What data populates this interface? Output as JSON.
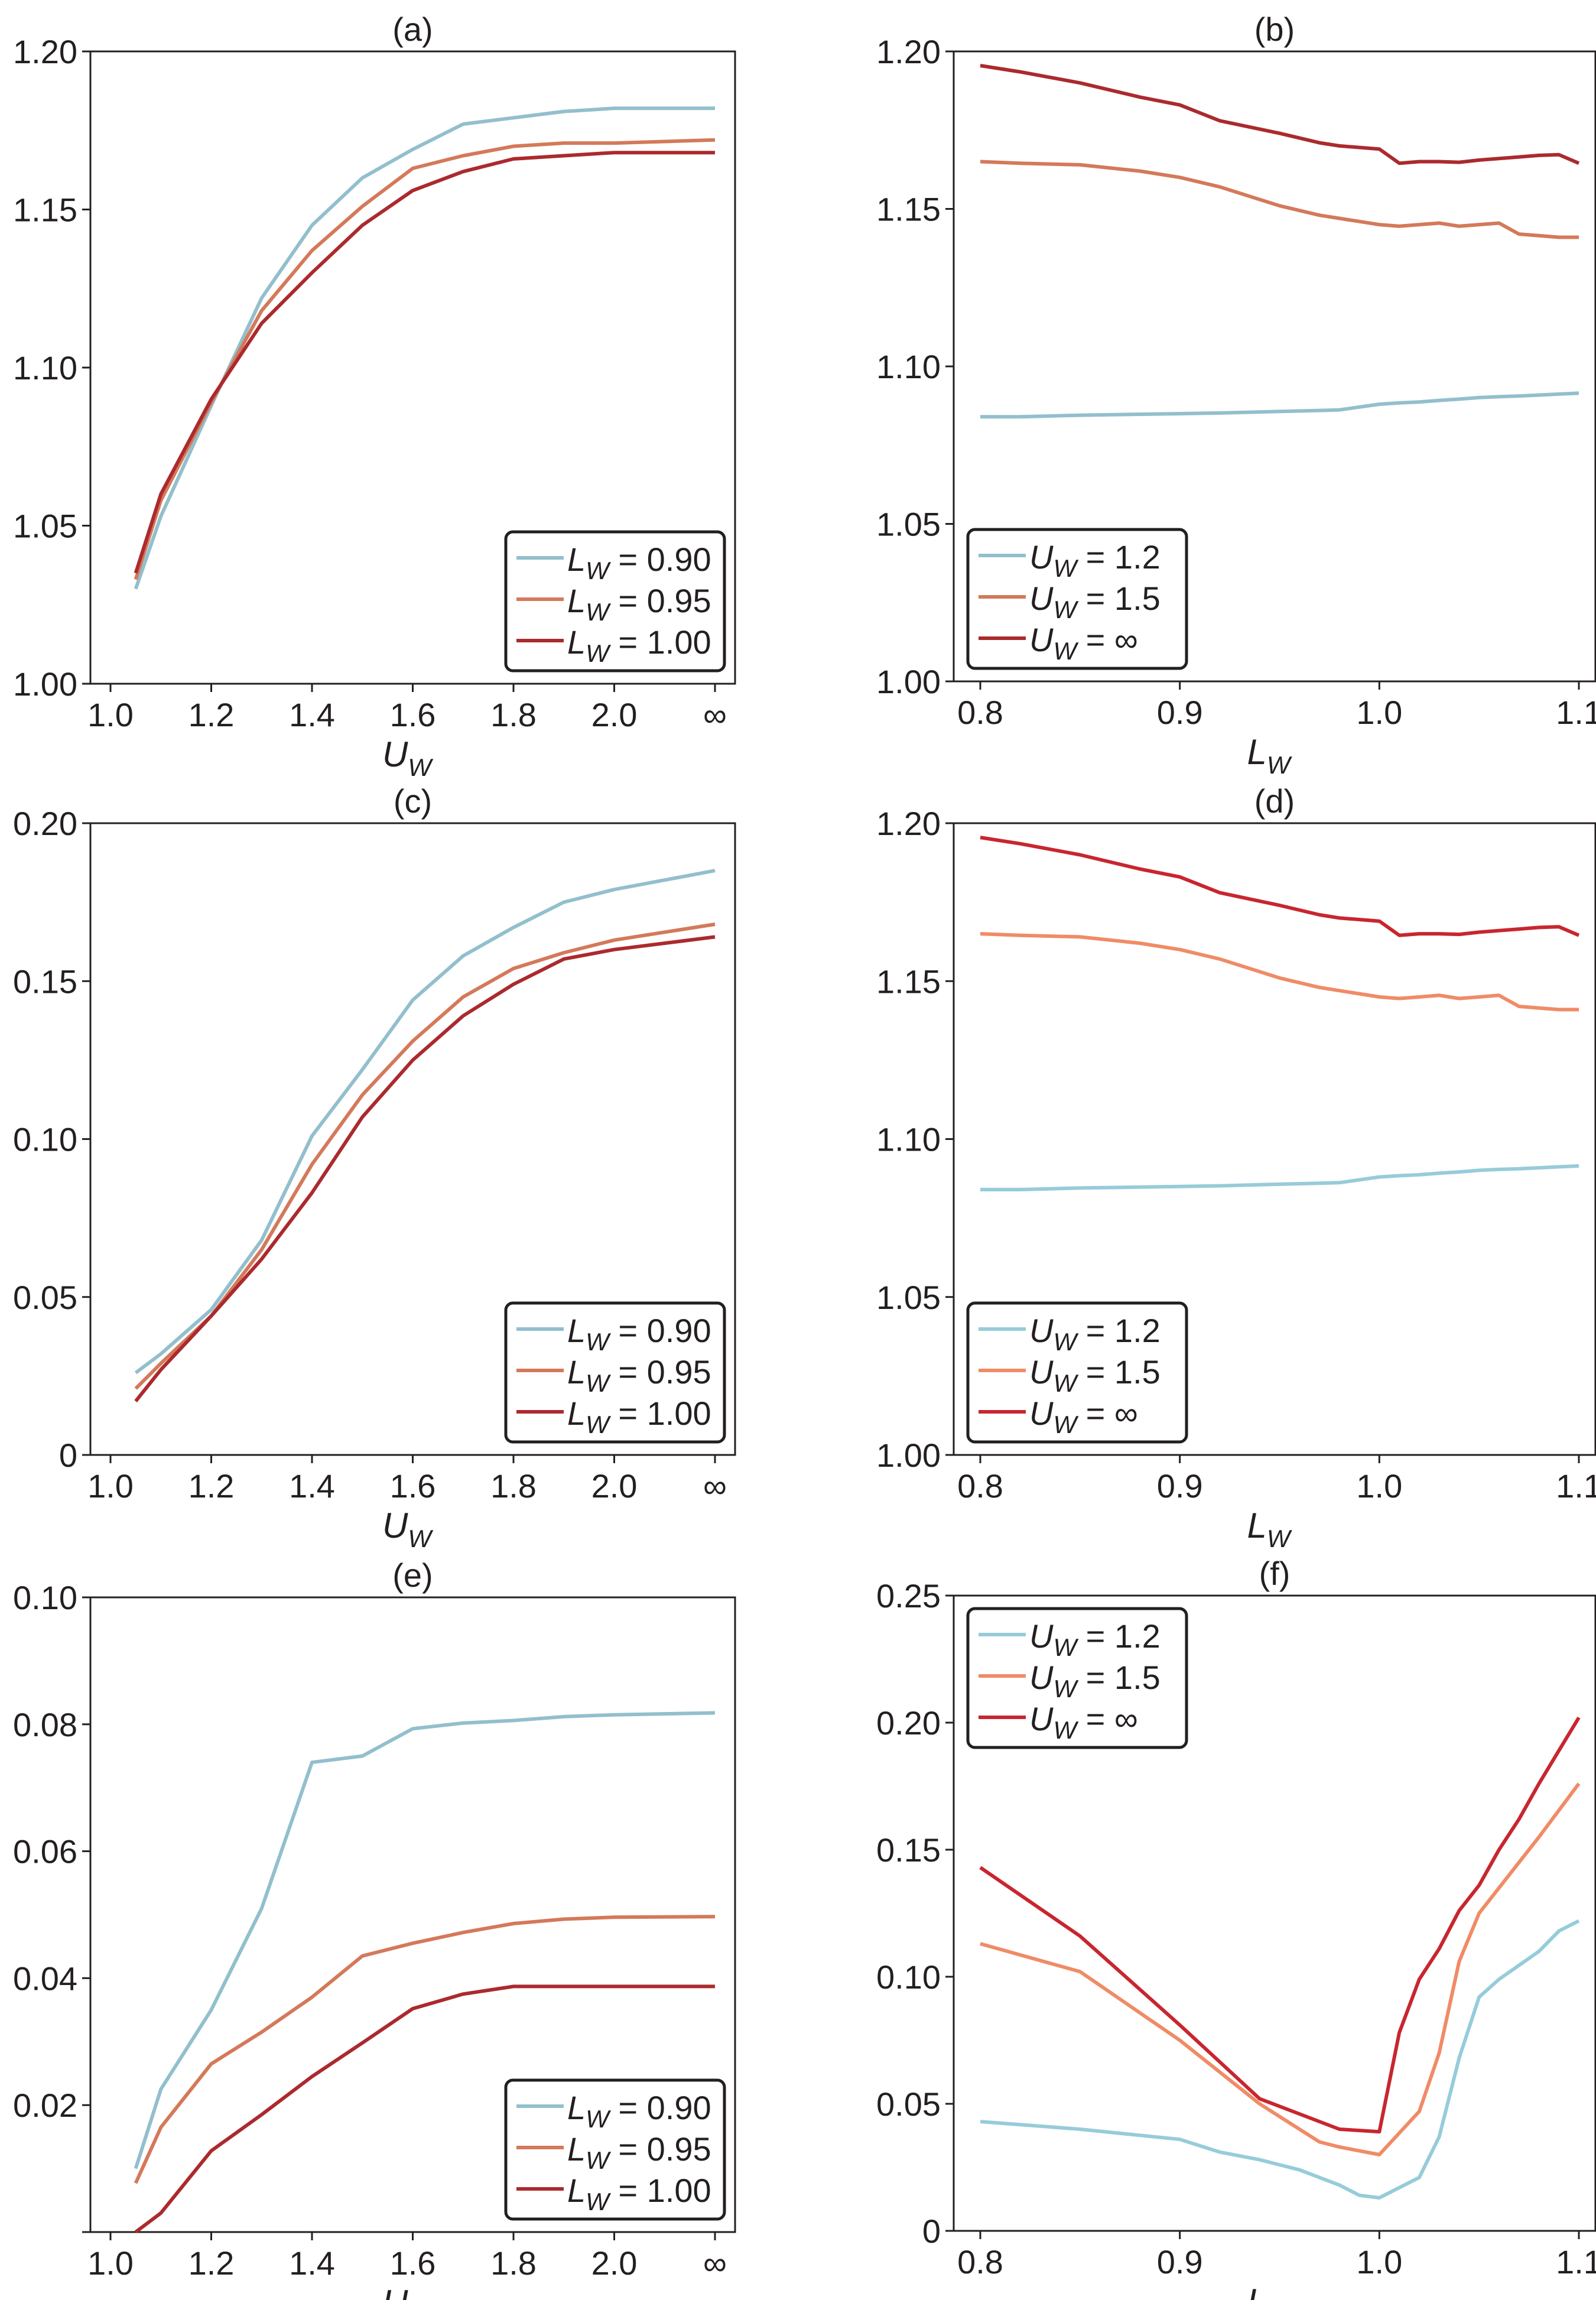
{
  "figure": {
    "panels": [
      "a",
      "b",
      "c",
      "d",
      "e",
      "f"
    ]
  },
  "chart_data": [
    {
      "id": "a",
      "type": "line",
      "title": "(a)",
      "xlabel": "U",
      "xlabel_sub": "W",
      "ylabel": "",
      "x_kind": "categorical-numeric",
      "x_ticks": [
        "1.0",
        "1.2",
        "1.4",
        "1.6",
        "1.8",
        "2.0",
        "∞"
      ],
      "ylim": [
        1.0,
        1.2
      ],
      "y_ticks": [
        "1.00",
        "1.05",
        "1.10",
        "1.15",
        "1.20"
      ],
      "legend_position": "lower-right",
      "x": [
        1.05,
        1.1,
        1.2,
        1.3,
        1.4,
        1.5,
        1.6,
        1.7,
        1.8,
        1.9,
        2.0,
        "∞"
      ],
      "series": [
        {
          "name": "L_W = 0.90",
          "var": "L",
          "sub": "W",
          "value": "0.90",
          "color": "#92bfcd",
          "values": [
            1.03,
            1.053,
            1.088,
            1.122,
            1.145,
            1.16,
            1.169,
            1.177,
            1.179,
            1.181,
            1.182,
            1.182
          ]
        },
        {
          "name": "L_W = 0.95",
          "var": "L",
          "sub": "W",
          "value": "0.95",
          "color": "#d4795a",
          "values": [
            1.033,
            1.058,
            1.089,
            1.118,
            1.137,
            1.151,
            1.163,
            1.167,
            1.17,
            1.171,
            1.171,
            1.172
          ]
        },
        {
          "name": "L_W = 1.00",
          "var": "L",
          "sub": "W",
          "value": "1.00",
          "color": "#ab2a2e",
          "values": [
            1.035,
            1.06,
            1.09,
            1.114,
            1.13,
            1.145,
            1.156,
            1.162,
            1.166,
            1.167,
            1.168,
            1.168
          ]
        }
      ]
    },
    {
      "id": "b",
      "type": "line",
      "title": "(b)",
      "xlabel": "L",
      "xlabel_sub": "W",
      "ylabel": "",
      "x_kind": "linear",
      "xlim": [
        0.79,
        1.11
      ],
      "x_ticks": [
        "0.8",
        "0.9",
        "1.0",
        "1.1"
      ],
      "ylim": [
        1.0,
        1.2
      ],
      "y_ticks": [
        "1.00",
        "1.05",
        "1.10",
        "1.15",
        "1.20"
      ],
      "legend_position": "lower-left",
      "x": [
        0.8,
        0.82,
        0.85,
        0.88,
        0.9,
        0.92,
        0.95,
        0.97,
        0.98,
        1.0,
        1.01,
        1.02,
        1.03,
        1.04,
        1.05,
        1.06,
        1.07,
        1.08,
        1.09,
        1.1
      ],
      "series": [
        {
          "name": "U_W = 1.2",
          "var": "U",
          "sub": "W",
          "value": "1.2",
          "color": "#92bfcd",
          "values": [
            1.084,
            1.084,
            1.0845,
            1.0848,
            1.085,
            1.0852,
            1.0857,
            1.086,
            1.0862,
            1.088,
            1.0884,
            1.0887,
            1.0892,
            1.0896,
            1.0901,
            1.0904,
            1.0906,
            1.0909,
            1.0912,
            1.0915
          ]
        },
        {
          "name": "U_W = 1.5",
          "var": "U",
          "sub": "W",
          "value": "1.5",
          "color": "#d4795a",
          "values": [
            1.165,
            1.1645,
            1.164,
            1.162,
            1.16,
            1.157,
            1.151,
            1.148,
            1.147,
            1.145,
            1.1445,
            1.145,
            1.1455,
            1.1445,
            1.145,
            1.1455,
            1.142,
            1.1415,
            1.141,
            1.141
          ]
        },
        {
          "name": "U_W = ∞",
          "var": "U",
          "sub": "W",
          "value": "∞",
          "color": "#ab2a2e",
          "values": [
            1.1955,
            1.1935,
            1.19,
            1.1855,
            1.183,
            1.178,
            1.174,
            1.171,
            1.17,
            1.169,
            1.1645,
            1.165,
            1.165,
            1.1648,
            1.1655,
            1.166,
            1.1665,
            1.167,
            1.1672,
            1.1645
          ]
        }
      ]
    },
    {
      "id": "c",
      "type": "line",
      "title": "(c)",
      "xlabel": "U",
      "xlabel_sub": "W",
      "ylabel": "",
      "x_kind": "categorical-numeric",
      "x_ticks": [
        "1.0",
        "1.2",
        "1.4",
        "1.6",
        "1.8",
        "2.0",
        "∞"
      ],
      "ylim": [
        0,
        0.2
      ],
      "y_ticks": [
        "0",
        "0.05",
        "0.10",
        "0.15",
        "0.20"
      ],
      "legend_position": "lower-right",
      "x": [
        1.05,
        1.1,
        1.2,
        1.3,
        1.4,
        1.5,
        1.6,
        1.7,
        1.8,
        1.9,
        2.0,
        "∞"
      ],
      "series": [
        {
          "name": "L_W = 0.90",
          "var": "L",
          "sub": "W",
          "value": "0.90",
          "color": "#92bfcd",
          "values": [
            0.026,
            0.032,
            0.046,
            0.068,
            0.101,
            0.122,
            0.144,
            0.158,
            0.167,
            0.175,
            0.179,
            0.185
          ]
        },
        {
          "name": "L_W = 0.95",
          "var": "L",
          "sub": "W",
          "value": "0.95",
          "color": "#d4795a",
          "values": [
            0.021,
            0.029,
            0.044,
            0.065,
            0.092,
            0.114,
            0.131,
            0.145,
            0.154,
            0.159,
            0.163,
            0.168
          ]
        },
        {
          "name": "L_W = 1.00",
          "var": "L",
          "sub": "W",
          "value": "1.00",
          "color": "#ab2a2e",
          "values": [
            0.017,
            0.027,
            0.044,
            0.062,
            0.083,
            0.107,
            0.125,
            0.139,
            0.149,
            0.157,
            0.16,
            0.164
          ]
        }
      ]
    },
    {
      "id": "d",
      "type": "line",
      "title": "(d)",
      "xlabel": "L",
      "xlabel_sub": "W",
      "ylabel": "",
      "x_kind": "linear",
      "xlim": [
        0.79,
        1.11
      ],
      "x_ticks": [
        "0.8",
        "0.9",
        "1.0",
        "1.1"
      ],
      "ylim": [
        1.0,
        1.2
      ],
      "y_ticks": [
        "1.00",
        "1.05",
        "1.10",
        "1.15",
        "1.20"
      ],
      "legend_position": "lower-left",
      "x": [
        0.8,
        0.82,
        0.85,
        0.88,
        0.9,
        0.92,
        0.95,
        0.97,
        0.98,
        1.0,
        1.01,
        1.02,
        1.03,
        1.04,
        1.05,
        1.06,
        1.07,
        1.08,
        1.09,
        1.1
      ],
      "series": [
        {
          "name": "U_W = 1.2",
          "var": "U",
          "sub": "W",
          "value": "1.2",
          "color": "#96ccd9",
          "values": [
            1.084,
            1.084,
            1.0845,
            1.0848,
            1.085,
            1.0852,
            1.0857,
            1.086,
            1.0862,
            1.088,
            1.0884,
            1.0887,
            1.0892,
            1.0896,
            1.0901,
            1.0904,
            1.0906,
            1.0909,
            1.0912,
            1.0915
          ]
        },
        {
          "name": "U_W = 1.5",
          "var": "U",
          "sub": "W",
          "value": "1.5",
          "color": "#f08b66",
          "values": [
            1.165,
            1.1645,
            1.164,
            1.162,
            1.16,
            1.157,
            1.151,
            1.148,
            1.147,
            1.145,
            1.1445,
            1.145,
            1.1455,
            1.1445,
            1.145,
            1.1455,
            1.142,
            1.1415,
            1.141,
            1.141
          ]
        },
        {
          "name": "U_W = ∞",
          "var": "U",
          "sub": "W",
          "value": "∞",
          "color": "#c8262f",
          "values": [
            1.1955,
            1.1935,
            1.19,
            1.1855,
            1.183,
            1.178,
            1.174,
            1.171,
            1.17,
            1.169,
            1.1645,
            1.165,
            1.165,
            1.1648,
            1.1655,
            1.166,
            1.1665,
            1.167,
            1.1672,
            1.1645
          ]
        }
      ]
    },
    {
      "id": "e",
      "type": "line",
      "title": "(e)",
      "xlabel": "U",
      "xlabel_sub": "W",
      "ylabel": "",
      "x_kind": "categorical-numeric",
      "x_ticks": [
        "1.0",
        "1.2",
        "1.4",
        "1.6",
        "1.8",
        "2.0",
        "∞"
      ],
      "ylim": [
        0,
        0.1
      ],
      "y_ticks": [
        "",
        "0.02",
        "0.04",
        "0.06",
        "0.08",
        "0.10"
      ],
      "legend_position": "lower-right",
      "x": [
        1.05,
        1.1,
        1.2,
        1.3,
        1.4,
        1.5,
        1.6,
        1.7,
        1.8,
        1.9,
        2.0,
        "∞"
      ],
      "series": [
        {
          "name": "L_W = 0.90",
          "var": "L",
          "sub": "W",
          "value": "0.90",
          "color": "#92bfcd",
          "values": [
            0.01,
            0.0225,
            0.035,
            0.051,
            0.074,
            0.075,
            0.0793,
            0.0802,
            0.0806,
            0.0812,
            0.0815,
            0.0818
          ]
        },
        {
          "name": "L_W = 0.95",
          "var": "L",
          "sub": "W",
          "value": "0.95",
          "color": "#d4795a",
          "values": [
            0.0077,
            0.0165,
            0.0265,
            0.0315,
            0.037,
            0.0435,
            0.0455,
            0.0472,
            0.0486,
            0.0493,
            0.0496,
            0.0497
          ]
        },
        {
          "name": "L_W = 1.00",
          "var": "L",
          "sub": "W",
          "value": "1.00",
          "color": "#ab2a2e",
          "values": [
            0.0,
            0.003,
            0.0128,
            0.0185,
            0.0245,
            0.0298,
            0.0352,
            0.0375,
            0.0387,
            0.0387,
            0.0387,
            0.0387
          ]
        }
      ]
    },
    {
      "id": "f",
      "type": "line",
      "title": "(f)",
      "xlabel": "L",
      "xlabel_sub": "W",
      "ylabel": "",
      "x_kind": "linear",
      "xlim": [
        0.79,
        1.11
      ],
      "x_ticks": [
        "0.8",
        "0.9",
        "1.0",
        "1.1"
      ],
      "ylim": [
        0,
        0.25
      ],
      "y_ticks": [
        "0",
        "0.05",
        "0.10",
        "0.15",
        "0.20",
        "0.25"
      ],
      "legend_position": "upper-left",
      "series": [
        {
          "name": "U_W = 1.2",
          "var": "U",
          "sub": "W",
          "value": "1.2",
          "color": "#96ccd9",
          "x": [
            0.8,
            0.85,
            0.9,
            0.92,
            0.94,
            0.96,
            0.98,
            0.99,
            1.0,
            1.02,
            1.03,
            1.04,
            1.05,
            1.06,
            1.08,
            1.09,
            1.1
          ],
          "values": [
            0.043,
            0.04,
            0.036,
            0.031,
            0.028,
            0.024,
            0.018,
            0.014,
            0.013,
            0.021,
            0.037,
            0.068,
            0.092,
            0.099,
            0.11,
            0.118,
            0.122
          ]
        },
        {
          "name": "U_W = 1.5",
          "var": "U",
          "sub": "W",
          "value": "1.5",
          "color": "#f08b66",
          "x": [
            0.8,
            0.85,
            0.9,
            0.94,
            0.97,
            0.98,
            1.0,
            1.02,
            1.03,
            1.04,
            1.05,
            1.07,
            1.08,
            1.1
          ],
          "values": [
            0.113,
            0.102,
            0.075,
            0.05,
            0.035,
            0.033,
            0.03,
            0.047,
            0.07,
            0.106,
            0.125,
            0.145,
            0.155,
            0.176
          ]
        },
        {
          "name": "U_W = ∞",
          "var": "U",
          "sub": "W",
          "value": "∞",
          "color": "#c8262f",
          "x": [
            0.8,
            0.85,
            0.9,
            0.94,
            0.98,
            1.0,
            1.01,
            1.02,
            1.03,
            1.04,
            1.05,
            1.06,
            1.07,
            1.08,
            1.09,
            1.1
          ],
          "values": [
            0.143,
            0.116,
            0.081,
            0.052,
            0.04,
            0.039,
            0.078,
            0.099,
            0.111,
            0.126,
            0.136,
            0.15,
            0.162,
            0.176,
            0.189,
            0.202
          ]
        }
      ]
    }
  ]
}
